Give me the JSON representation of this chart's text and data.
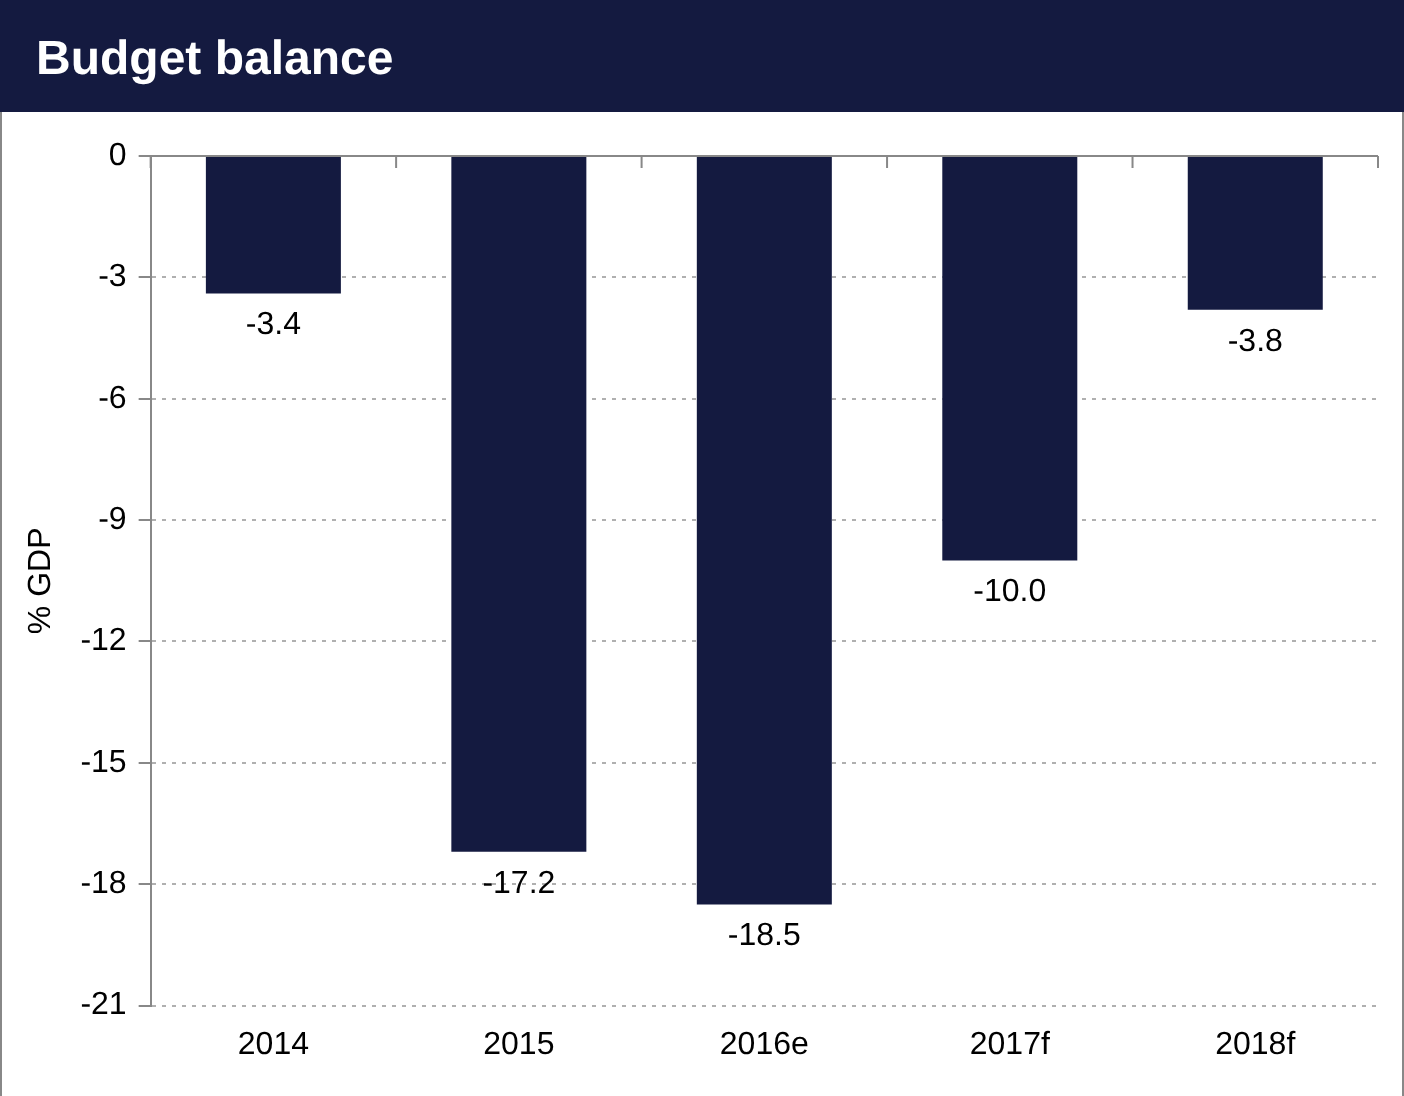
{
  "chart_data": {
    "type": "bar",
    "title": "Budget balance",
    "ylabel": "% GDP",
    "categories": [
      "2014",
      "2015",
      "2016e",
      "2017f",
      "2018f"
    ],
    "values": [
      -3.4,
      -17.2,
      -18.5,
      -10.0,
      -3.8
    ],
    "value_labels": [
      "-3.4",
      "-17.2",
      "-18.5",
      "-10.0",
      "-3.8"
    ],
    "color": "#141a40",
    "ylim": [
      -21,
      0
    ],
    "yticks": [
      -21,
      -18,
      -15,
      -12,
      -9,
      -6,
      -3,
      0
    ],
    "grid": "y",
    "legend": false
  }
}
